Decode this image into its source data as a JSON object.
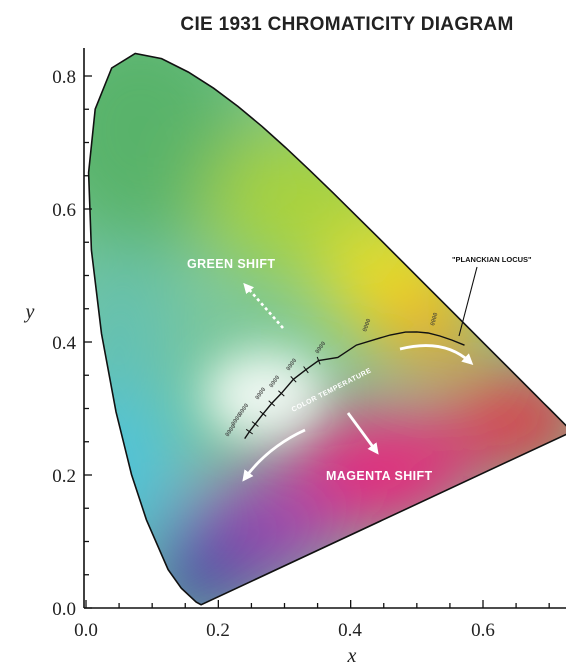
{
  "title": "CIE 1931 CHROMATICITY DIAGRAM",
  "axes": {
    "x_label": "x",
    "y_label": "y",
    "x_ticks": [
      "0.0",
      "0.2",
      "0.4",
      "0.6"
    ],
    "y_ticks": [
      "0.0",
      "0.2",
      "0.4",
      "0.6",
      "0.8"
    ]
  },
  "annotations": {
    "green_shift": "GREEN SHIFT",
    "magenta_shift": "MAGENTA SHIFT",
    "planckian_locus": "\"PLANCKIAN LOCUS\"",
    "color_temperature": "COLOR TEMPERATURE"
  },
  "colors": {
    "green_region": "#59b36a",
    "cyan_region": "#4fc3d9",
    "blue_region": "#3a3fa6",
    "yellow_region": "#f2e21c",
    "red_region": "#e8273b",
    "magenta_region": "#e8227a"
  },
  "chart_data": {
    "type": "diagram",
    "xlim": [
      0,
      0.735
    ],
    "ylim": [
      0,
      0.84
    ],
    "spectral_locus": [
      [
        0.1741,
        0.005
      ],
      [
        0.1738,
        0.0049
      ],
      [
        0.1666,
        0.0089
      ],
      [
        0.144,
        0.0297
      ],
      [
        0.1241,
        0.0578
      ],
      [
        0.0913,
        0.1327
      ],
      [
        0.0687,
        0.2007
      ],
      [
        0.0454,
        0.295
      ],
      [
        0.0235,
        0.4127
      ],
      [
        0.0082,
        0.5384
      ],
      [
        0.0039,
        0.6548
      ],
      [
        0.0139,
        0.7502
      ],
      [
        0.0389,
        0.812
      ],
      [
        0.0743,
        0.8338
      ],
      [
        0.1142,
        0.8262
      ],
      [
        0.1547,
        0.8059
      ],
      [
        0.1929,
        0.7816
      ],
      [
        0.2296,
        0.7543
      ],
      [
        0.2658,
        0.7243
      ],
      [
        0.3016,
        0.6923
      ],
      [
        0.3373,
        0.6589
      ],
      [
        0.3731,
        0.6245
      ],
      [
        0.4087,
        0.5896
      ],
      [
        0.4441,
        0.5547
      ],
      [
        0.4788,
        0.5202
      ],
      [
        0.5125,
        0.4866
      ],
      [
        0.5448,
        0.4544
      ],
      [
        0.5752,
        0.4242
      ],
      [
        0.6029,
        0.3965
      ],
      [
        0.627,
        0.3725
      ],
      [
        0.6482,
        0.3514
      ],
      [
        0.6658,
        0.334
      ],
      [
        0.6801,
        0.3197
      ],
      [
        0.6915,
        0.3083
      ],
      [
        0.7006,
        0.2993
      ],
      [
        0.7079,
        0.292
      ],
      [
        0.7347,
        0.2653
      ]
    ],
    "planckian_locus": [
      [
        0.2399,
        0.2548
      ],
      [
        0.247,
        0.2652
      ],
      [
        0.2557,
        0.2766
      ],
      [
        0.2676,
        0.292
      ],
      [
        0.2807,
        0.3077
      ],
      [
        0.2952,
        0.3227
      ],
      [
        0.3135,
        0.3439
      ],
      [
        0.3324,
        0.3584
      ],
      [
        0.3516,
        0.372
      ],
      [
        0.3805,
        0.3768
      ],
      [
        0.4087,
        0.3953
      ],
      [
        0.4369,
        0.4039
      ],
      [
        0.4598,
        0.4106
      ],
      [
        0.4829,
        0.4149
      ],
      [
        0.5,
        0.4152
      ],
      [
        0.517,
        0.4135
      ],
      [
        0.5349,
        0.409
      ],
      [
        0.5532,
        0.4028
      ],
      [
        0.572,
        0.3952
      ]
    ]
  }
}
